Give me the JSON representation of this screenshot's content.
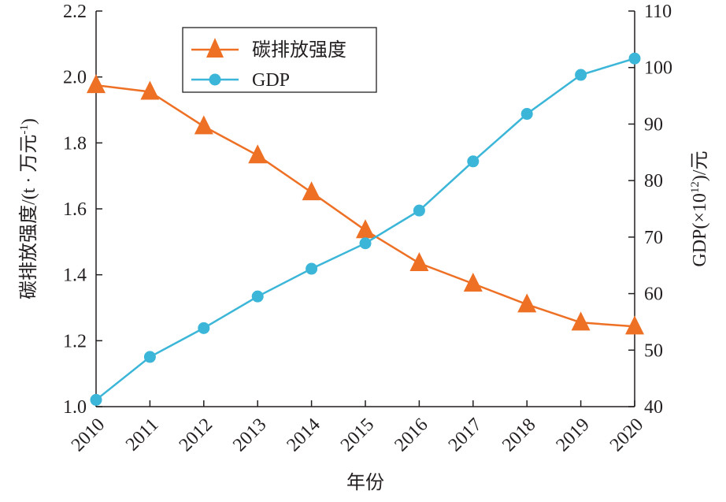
{
  "chart_data": {
    "type": "line",
    "categories": [
      "2010",
      "2011",
      "2012",
      "2013",
      "2014",
      "2015",
      "2016",
      "2017",
      "2018",
      "2019",
      "2020"
    ],
    "xlabel": "年份",
    "y_left": {
      "label": "碳排放强度/(t · 万元",
      "label_sup": "-1",
      "label_end": ")",
      "range": [
        1.0,
        2.2
      ],
      "ticks": [
        "1.0",
        "1.2",
        "1.4",
        "1.6",
        "1.8",
        "2.0",
        "2.2"
      ]
    },
    "y_right": {
      "label": "GDP(×10",
      "label_sup": "12",
      "label_end": ")/元",
      "range": [
        40,
        110
      ],
      "ticks": [
        "40",
        "50",
        "60",
        "70",
        "80",
        "90",
        "100",
        "110"
      ]
    },
    "series": [
      {
        "name": "碳排放强度",
        "axis": "left",
        "marker": "triangle",
        "color": "#ee7024",
        "values": [
          1.975,
          1.955,
          1.85,
          1.762,
          1.65,
          1.535,
          1.435,
          1.373,
          1.31,
          1.255,
          1.243
        ]
      },
      {
        "name": "GDP",
        "axis": "right",
        "marker": "circle",
        "color": "#3bb6d8",
        "values": [
          41.2,
          48.8,
          53.9,
          59.5,
          64.4,
          68.9,
          74.7,
          83.4,
          91.8,
          98.7,
          101.6
        ]
      }
    ],
    "legend": {
      "position": "top-left",
      "entries": [
        "碳排放强度",
        "GDP"
      ]
    },
    "grid": false
  }
}
